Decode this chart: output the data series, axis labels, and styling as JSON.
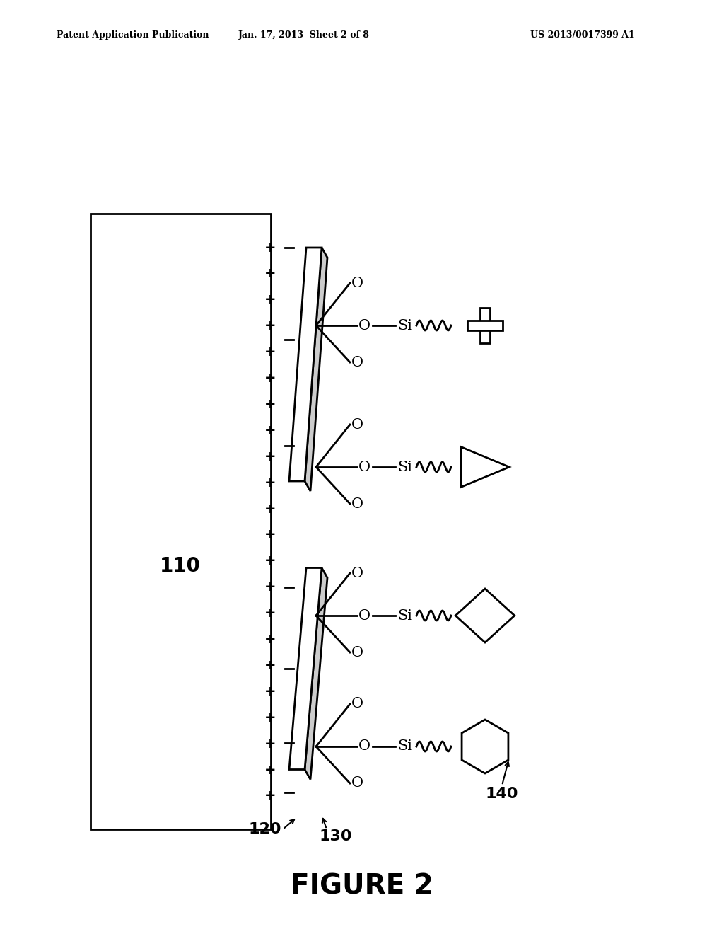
{
  "bg_color": "#ffffff",
  "header_left": "Patent Application Publication",
  "header_center": "Jan. 17, 2013  Sheet 2 of 8",
  "header_right": "US 2013/0017399 A1",
  "figure_title": "FIGURE 2",
  "label_110": "110",
  "label_120": "120",
  "label_130": "130",
  "label_140": "140"
}
